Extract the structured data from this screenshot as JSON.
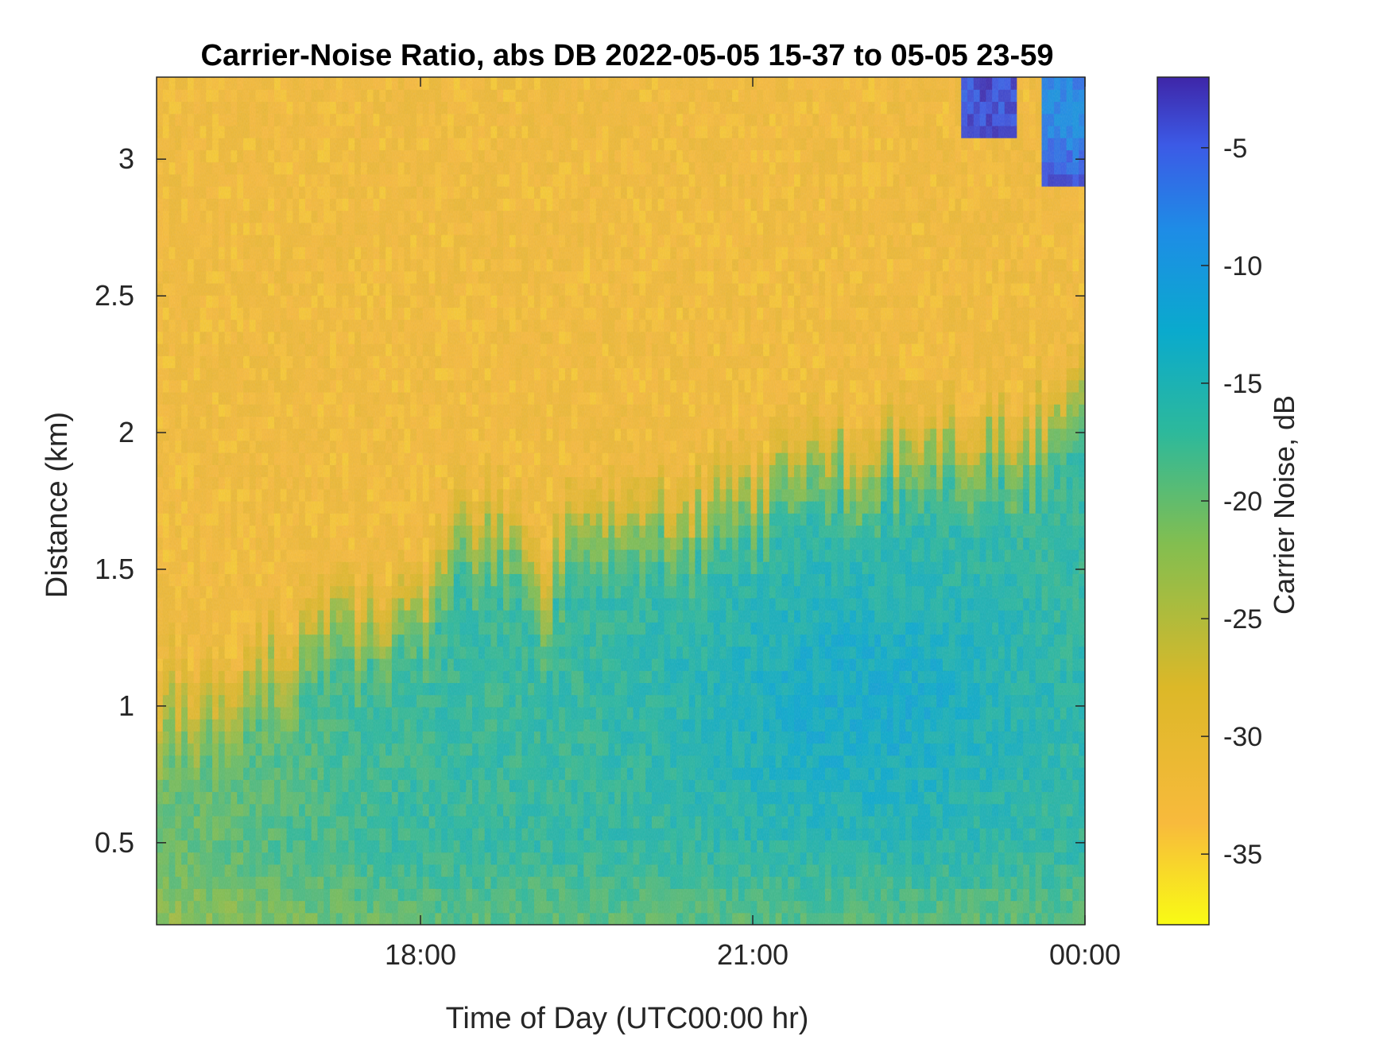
{
  "chart_data": {
    "type": "heatmap",
    "title": "Carrier-Noise Ratio, abs DB 2022-05-05 15-37 to 05-05 23-59",
    "xlabel": "Time of Day (UTC00:00 hr)",
    "ylabel": "Distance (km)",
    "colorbar_label": "Carrier Noise, dB",
    "x_range_hours": [
      15.617,
      24.0
    ],
    "ylim": [
      0.2,
      3.3
    ],
    "clim": [
      -38,
      -2
    ],
    "colormap": "parula-reversed",
    "grid": false,
    "x_ticks": [
      {
        "value": 18,
        "label": "18:00"
      },
      {
        "value": 21,
        "label": "21:00"
      },
      {
        "value": 24,
        "label": "00:00"
      }
    ],
    "y_ticks": [
      {
        "value": 0.5,
        "label": "0.5"
      },
      {
        "value": 1,
        "label": "1"
      },
      {
        "value": 1.5,
        "label": "1.5"
      },
      {
        "value": 2,
        "label": "2"
      },
      {
        "value": 2.5,
        "label": "2.5"
      },
      {
        "value": 3,
        "label": "3"
      }
    ],
    "colorbar_ticks": [
      {
        "value": -5,
        "label": "-5"
      },
      {
        "value": -10,
        "label": "-10"
      },
      {
        "value": -15,
        "label": "-15"
      },
      {
        "value": -20,
        "label": "-20"
      },
      {
        "value": -25,
        "label": "-25"
      },
      {
        "value": -30,
        "label": "-30"
      },
      {
        "value": -35,
        "label": "-35"
      }
    ],
    "boundary_layer_top_km": {
      "hours": [
        15.62,
        16.0,
        16.5,
        17.0,
        17.3,
        17.6,
        17.9,
        18.1,
        18.3,
        18.6,
        18.9,
        19.1,
        19.3,
        19.6,
        20.0,
        20.5,
        21.0,
        21.3,
        21.6,
        22.0,
        22.5,
        23.0,
        23.5,
        24.0
      ],
      "km": [
        1.0,
        1.05,
        1.1,
        1.2,
        1.3,
        1.32,
        1.3,
        1.45,
        1.6,
        1.65,
        1.62,
        1.4,
        1.6,
        1.68,
        1.68,
        1.72,
        1.78,
        1.85,
        1.9,
        1.92,
        1.93,
        1.95,
        2.0,
        2.1
      ]
    },
    "core_values_db": {
      "below_top": -17,
      "above_top": -33,
      "strongest_core": -13
    },
    "top_right_high_values_db": -4
  }
}
